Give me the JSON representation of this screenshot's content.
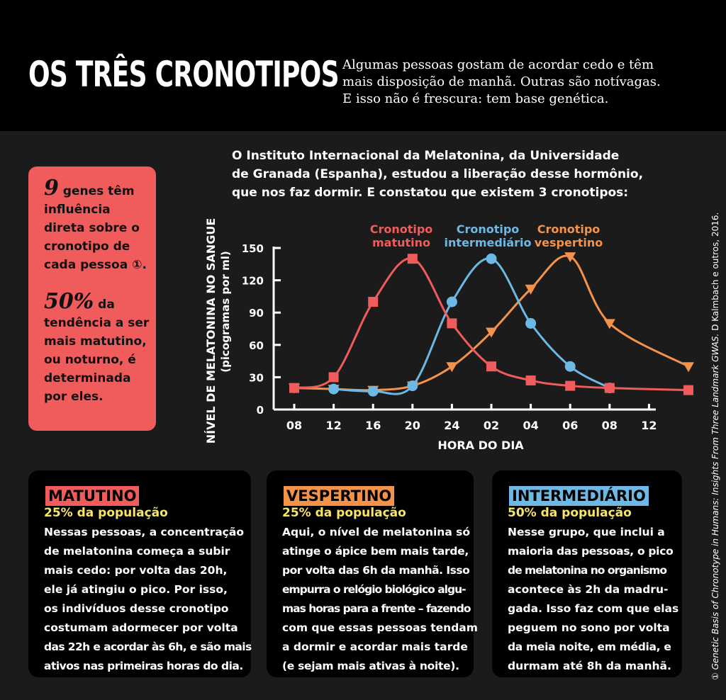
{
  "header": {
    "title": "OS TRÊS CRONOTIPOS",
    "intro_lines": [
      "Algumas pessoas gostam de acordar cedo e têm",
      "mais disposição de manhã. Outras são notívagas.",
      "E isso não é frescura: tem base genética."
    ]
  },
  "lead_lines": [
    "O Instituto Internacional da Melatonina, da Universidade",
    "de Granada (Espanha), estudou a liberação desse hormônio,",
    "que nos faz dormir. E constatou que existem 3 cronotipos:"
  ],
  "facts": [
    {
      "number": "9",
      "lines": [
        " genes têm",
        "influência",
        "direta sobre o",
        "cronotipo de",
        "cada pessoa ①."
      ]
    },
    {
      "number": "50%",
      "lines": [
        " da",
        "tendência a ser",
        "mais matutino,",
        "ou noturno, é",
        "determinada",
        "por eles."
      ]
    }
  ],
  "colors": {
    "matutino": "#f05b5b",
    "intermediario": "#6cb9e6",
    "vespertino": "#f5924a",
    "highlight": "#f7e56a"
  },
  "chart_data": {
    "type": "line",
    "ylabel": "NÍVEL DE MELATONINA NO SANGUE",
    "ylabel_unit": "(picogramas por ml)",
    "xlabel": "HORA DO DIA",
    "categories": [
      "08",
      "12",
      "16",
      "20",
      "24",
      "02",
      "04",
      "06",
      "08",
      "12"
    ],
    "y_ticks": [
      "0",
      "30",
      "60",
      "90",
      "120",
      "150"
    ],
    "ylim": [
      0,
      150
    ],
    "series": [
      {
        "name_lines": [
          "Cronotipo",
          "matutino"
        ],
        "marker": "square",
        "x": [
          8,
          12,
          16,
          20,
          24,
          26,
          28,
          30,
          32,
          36
        ],
        "y": [
          20,
          30,
          100,
          140,
          80,
          40,
          27,
          22,
          20,
          18
        ]
      },
      {
        "name_lines": [
          "Cronotipo",
          "intermediário"
        ],
        "marker": "circle",
        "x": [
          12,
          16,
          20,
          24,
          26,
          28,
          30,
          32
        ],
        "y": [
          19,
          17,
          22,
          100,
          140,
          80,
          40,
          20
        ]
      },
      {
        "name_lines": [
          "Cronotipo",
          "vespertino"
        ],
        "marker": "triangle",
        "x": [
          8,
          12,
          16,
          20,
          24,
          26,
          28,
          30,
          32,
          36
        ],
        "y": [
          20,
          19,
          18,
          22,
          40,
          72,
          112,
          142,
          80,
          40
        ]
      }
    ]
  },
  "cards": [
    {
      "title": "MATUTINO",
      "population": "25% da população",
      "lines": [
        "Nessas pessoas, a concentração",
        "de melatonina começa a subir",
        "mais cedo: por volta das 20h,",
        "ele já atingiu o pico. Por isso,",
        "os indivíduos desse cronotipo",
        "costumam adormecer por volta",
        "das 22h e acordar às 6h, e são mais",
        "ativos nas primeiras horas do dia."
      ]
    },
    {
      "title": "VESPERTINO",
      "population": "25% da população",
      "lines": [
        "Aqui, o nível de melatonina só",
        "atinge o ápice bem mais tarde,",
        "por volta das 6h da manhã. Isso",
        "empurra o relógio biológico algu-",
        "mas horas para a frente – fazendo",
        "com que essas pessoas tendam",
        "a dormir e acordar mais tarde",
        "(e sejam mais ativas à noite)."
      ]
    },
    {
      "title": "INTERMEDIÁRIO",
      "population": "50% da população",
      "lines": [
        "Nesse grupo, que inclui a",
        "maioria das pessoas, o pico",
        "de melatonina no organismo",
        "acontece às 2h da madru-",
        "gada. Isso faz com que elas",
        "peguem no sono por volta",
        "da meia noite, em média, e",
        "durmam até 8h da manhã."
      ]
    }
  ],
  "footnote": {
    "marker": "①",
    "title_italic": "Genetic Basis of Chronotype in Humans: Insights From Three Landmark GWAS.",
    "rest": " D Kalmbach e outros, 2016."
  }
}
